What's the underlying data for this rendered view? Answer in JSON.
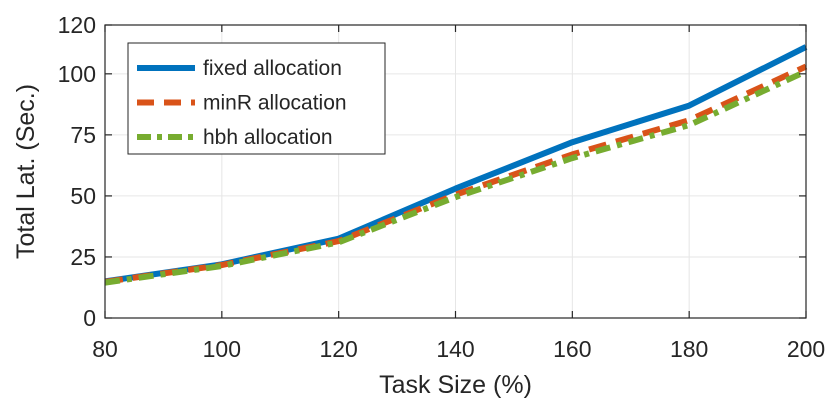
{
  "chart_data": {
    "type": "line",
    "title": "",
    "xlabel": "Task Size (%)",
    "ylabel": "Total Lat. (Sec.)",
    "xlim": [
      80,
      200
    ],
    "ylim": [
      0,
      120
    ],
    "xticks": [
      "80",
      "100",
      "120",
      "140",
      "160",
      "180",
      "200"
    ],
    "yticks": [
      "0",
      "25",
      "50",
      "75",
      "100",
      "120"
    ],
    "grid": true,
    "legend_position": "top-left",
    "x": [
      80,
      100,
      120,
      140,
      160,
      180,
      200
    ],
    "series": [
      {
        "name": "fixed allocation",
        "color": "#0072BD",
        "style": "solid",
        "values": [
          15,
          22,
          32.5,
          53,
          72,
          87,
          111
        ]
      },
      {
        "name": "minR allocation",
        "color": "#D95319",
        "style": "dashed",
        "values": [
          14.8,
          21.7,
          31.5,
          50.5,
          67,
          81,
          103
        ]
      },
      {
        "name": "hbh allocation",
        "color": "#77AC30",
        "style": "dashdot",
        "values": [
          14.5,
          21.3,
          31,
          49.5,
          65.5,
          79,
          101
        ]
      }
    ]
  }
}
